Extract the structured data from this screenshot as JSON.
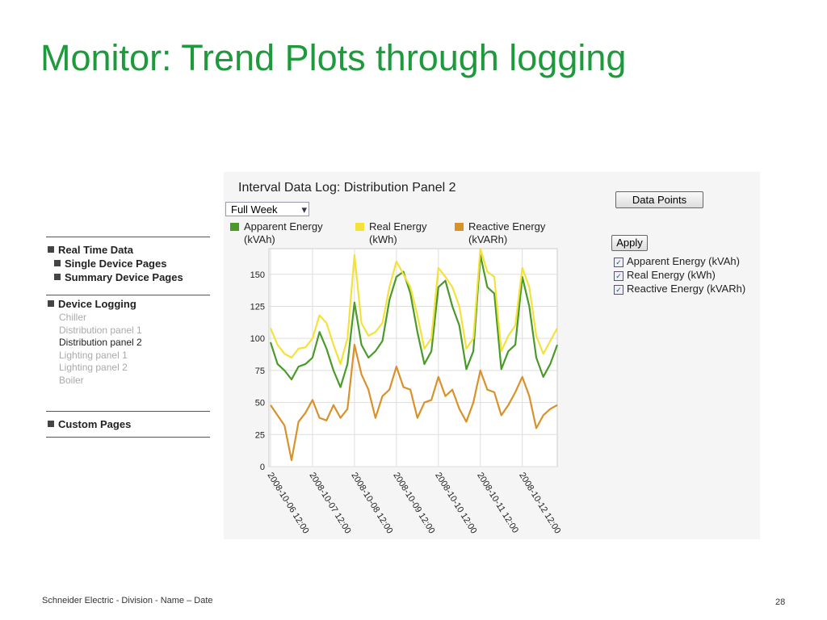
{
  "title": "Monitor: Trend Plots through logging",
  "footer": "Schneider Electric - Division - Name – Date",
  "page_number": "28",
  "nav": {
    "real_time": {
      "label": "Real Time Data",
      "items": [
        "Single Device Pages",
        "Summary Device Pages"
      ]
    },
    "device_logging": {
      "label": "Device Logging",
      "items": [
        "Chiller",
        "Distribution panel 1",
        "Distribution panel 2",
        "Lighting panel 1",
        "Lighting panel 2",
        "Boiler"
      ],
      "selected": 2
    },
    "custom": {
      "label": "Custom Pages"
    }
  },
  "panel_title": "Interval Data Log: Distribution Panel 2",
  "range_select": "Full Week",
  "data_points_button": "Data Points",
  "apply_button": "Apply",
  "chart_data": {
    "type": "line",
    "categories": [
      "2008-10-06 12:00",
      null,
      null,
      null,
      null,
      null,
      "2008-10-07 12:00",
      null,
      null,
      null,
      null,
      null,
      "2008-10-08 12:00",
      null,
      null,
      null,
      null,
      null,
      "2008-10-09 12:00",
      null,
      null,
      null,
      null,
      null,
      "2008-10-10 12:00",
      null,
      null,
      null,
      null,
      null,
      "2008-10-11 12:00",
      null,
      null,
      null,
      null,
      null,
      "2008-10-12 12:00",
      null,
      null,
      null,
      null,
      null
    ],
    "series": [
      {
        "name": "Apparent Energy (kVAh)",
        "color": "#4a9a2a",
        "values": [
          97,
          80,
          75,
          68,
          78,
          80,
          85,
          105,
          92,
          75,
          62,
          80,
          128,
          95,
          85,
          90,
          98,
          130,
          148,
          152,
          135,
          105,
          80,
          90,
          140,
          145,
          125,
          110,
          76,
          90,
          165,
          140,
          135,
          76,
          90,
          95,
          148,
          125,
          85,
          70,
          80,
          95
        ]
      },
      {
        "name": "Real Energy (kWh)",
        "color": "#f4e23a",
        "values": [
          108,
          95,
          88,
          85,
          92,
          93,
          100,
          118,
          112,
          95,
          80,
          100,
          165,
          112,
          102,
          105,
          112,
          140,
          160,
          150,
          140,
          118,
          92,
          100,
          155,
          148,
          140,
          125,
          92,
          100,
          170,
          152,
          148,
          90,
          102,
          110,
          155,
          140,
          102,
          88,
          98,
          108
        ]
      },
      {
        "name": "Reactive Energy (kVARh)",
        "color": "#d9912a",
        "values": [
          48,
          40,
          32,
          5,
          35,
          42,
          52,
          38,
          36,
          48,
          38,
          45,
          95,
          72,
          60,
          38,
          55,
          60,
          78,
          62,
          60,
          38,
          50,
          52,
          70,
          55,
          60,
          45,
          35,
          50,
          75,
          60,
          58,
          40,
          48,
          58,
          70,
          55,
          30,
          40,
          45,
          48
        ]
      }
    ],
    "ylim": [
      0,
      170
    ],
    "yticks": [
      0,
      25,
      50,
      75,
      100,
      125,
      150
    ],
    "grid": true
  }
}
